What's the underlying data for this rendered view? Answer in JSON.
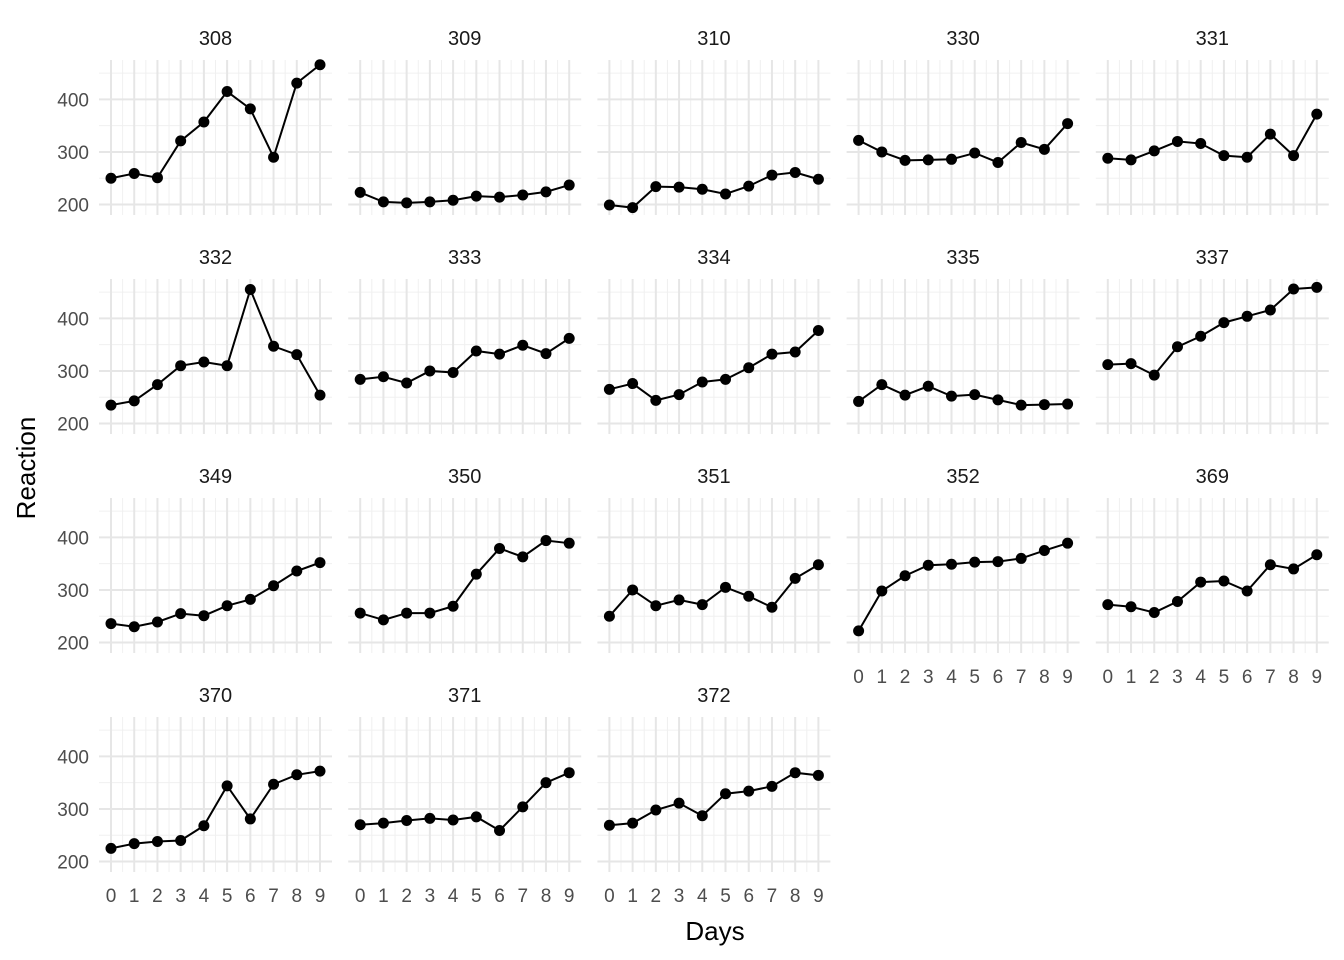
{
  "chart_data": {
    "type": "line",
    "xlabel": "Days",
    "ylabel": "Reaction",
    "x": [
      0,
      1,
      2,
      3,
      4,
      5,
      6,
      7,
      8,
      9
    ],
    "x_ticks": [
      "0",
      "1",
      "2",
      "3",
      "4",
      "5",
      "6",
      "7",
      "8",
      "9"
    ],
    "y_ticks": [
      "200",
      "300",
      "400"
    ],
    "y_tick_values": [
      200,
      300,
      400
    ],
    "ylim": [
      180,
      475
    ],
    "xlim": [
      -0.3,
      9.3
    ],
    "grid": "on",
    "legend": "none",
    "facet_columns": 5,
    "panels": [
      {
        "label": "308",
        "values": [
          250,
          259,
          251,
          321,
          357,
          415,
          382,
          290,
          431,
          466
        ]
      },
      {
        "label": "309",
        "values": [
          223,
          205,
          203,
          205,
          208,
          216,
          214,
          218,
          224,
          237
        ]
      },
      {
        "label": "310",
        "values": [
          199,
          194,
          234,
          233,
          229,
          220,
          235,
          256,
          261,
          248
        ]
      },
      {
        "label": "330",
        "values": [
          322,
          300,
          284,
          285,
          286,
          298,
          280,
          318,
          305,
          354
        ]
      },
      {
        "label": "331",
        "values": [
          288,
          285,
          302,
          320,
          316,
          293,
          290,
          334,
          293,
          372
        ]
      },
      {
        "label": "332",
        "values": [
          235,
          243,
          274,
          310,
          317,
          310,
          455,
          347,
          331,
          254
        ]
      },
      {
        "label": "333",
        "values": [
          284,
          289,
          277,
          300,
          297,
          338,
          332,
          349,
          333,
          362
        ]
      },
      {
        "label": "334",
        "values": [
          265,
          276,
          244,
          255,
          279,
          284,
          306,
          332,
          336,
          377
        ]
      },
      {
        "label": "335",
        "values": [
          242,
          274,
          254,
          271,
          252,
          255,
          245,
          235,
          236,
          237
        ]
      },
      {
        "label": "337",
        "values": [
          312,
          314,
          292,
          346,
          366,
          392,
          404,
          416,
          456,
          459
        ]
      },
      {
        "label": "349",
        "values": [
          236,
          230,
          239,
          255,
          251,
          270,
          282,
          308,
          336,
          352
        ]
      },
      {
        "label": "350",
        "values": [
          256,
          243,
          256,
          256,
          269,
          330,
          379,
          363,
          394,
          389
        ]
      },
      {
        "label": "351",
        "values": [
          250,
          300,
          270,
          281,
          272,
          305,
          288,
          267,
          322,
          348
        ]
      },
      {
        "label": "352",
        "values": [
          222,
          298,
          327,
          347,
          349,
          353,
          354,
          360,
          375,
          389
        ]
      },
      {
        "label": "369",
        "values": [
          272,
          268,
          257,
          278,
          315,
          317,
          298,
          348,
          340,
          367
        ]
      },
      {
        "label": "370",
        "values": [
          225,
          234,
          238,
          240,
          268,
          344,
          281,
          347,
          365,
          372
        ]
      },
      {
        "label": "371",
        "values": [
          270,
          273,
          278,
          282,
          279,
          285,
          259,
          304,
          350,
          369
        ]
      },
      {
        "label": "372",
        "values": [
          269,
          273,
          298,
          311,
          287,
          329,
          334,
          343,
          369,
          364
        ]
      }
    ]
  }
}
